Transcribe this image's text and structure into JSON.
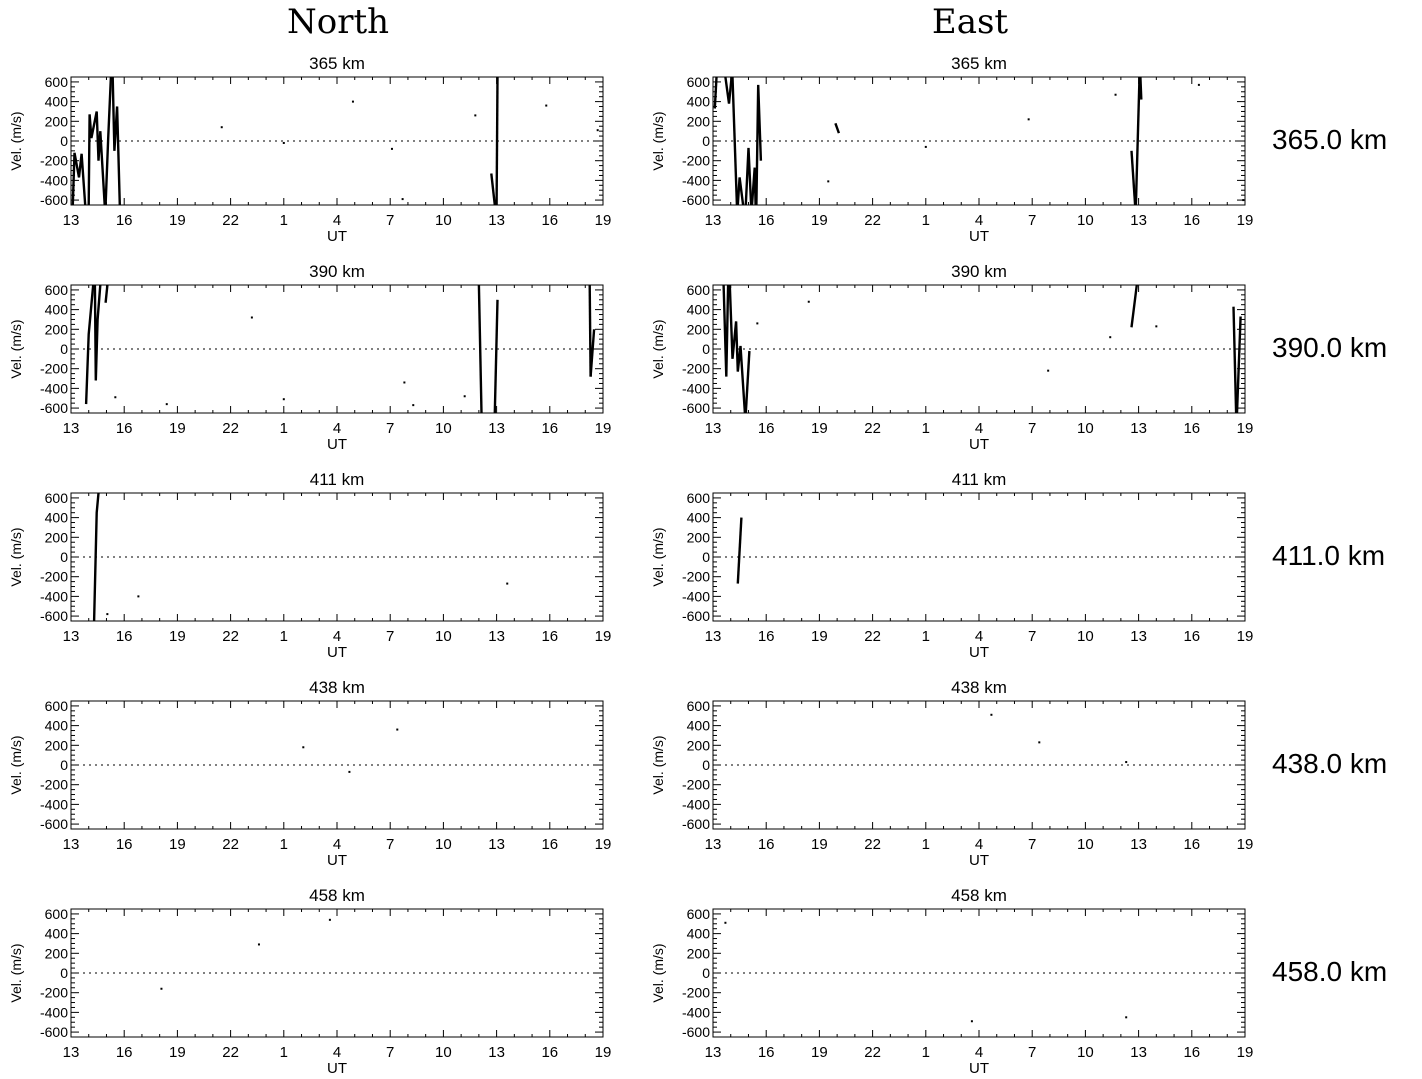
{
  "columns": [
    "North",
    "East"
  ],
  "row_labels": [
    "365.0 km",
    "390.0 km",
    "411.0 km",
    "438.0 km",
    "458.0 km"
  ],
  "chart_data": [
    {
      "type": "line",
      "column": "North",
      "title": "365 km",
      "xlabel": "UT",
      "ylabel": "Vel. (m/s)",
      "ylim": [
        -650,
        650
      ],
      "yticks": [
        -600,
        -400,
        -200,
        0,
        200,
        400,
        600
      ],
      "x_tick_labels": [
        "13",
        "16",
        "19",
        "22",
        "1",
        "4",
        "7",
        "10",
        "13",
        "16",
        "19"
      ],
      "x_range_hours": [
        0,
        30
      ],
      "zero_line": "dotted",
      "segments": [
        [
          [
            0.1,
            -650
          ],
          [
            0.2,
            -120
          ],
          [
            0.45,
            -370
          ],
          [
            0.6,
            -130
          ],
          [
            0.8,
            -650
          ]
        ],
        [
          [
            1.0,
            -650
          ],
          [
            1.05,
            270
          ],
          [
            1.15,
            30
          ],
          [
            1.45,
            300
          ],
          [
            1.55,
            -200
          ],
          [
            1.65,
            100
          ],
          [
            1.9,
            -650
          ]
        ],
        [
          [
            1.95,
            -650
          ],
          [
            2.1,
            30
          ],
          [
            2.25,
            650
          ]
        ],
        [
          [
            2.35,
            650
          ],
          [
            2.45,
            -100
          ],
          [
            2.6,
            350
          ],
          [
            2.75,
            -650
          ]
        ],
        [
          [
            23.7,
            -330
          ],
          [
            23.9,
            -650
          ]
        ],
        [
          [
            24.0,
            -650
          ],
          [
            24.05,
            650
          ]
        ]
      ],
      "points": [
        [
          8.5,
          140
        ],
        [
          12.0,
          -20
        ],
        [
          15.9,
          400
        ],
        [
          18.1,
          -80
        ],
        [
          18.7,
          -590
        ],
        [
          22.8,
          260
        ],
        [
          26.8,
          360
        ],
        [
          29.7,
          110
        ]
      ]
    },
    {
      "type": "line",
      "column": "East",
      "title": "365 km",
      "xlabel": "UT",
      "ylabel": "Vel. (m/s)",
      "ylim": [
        -650,
        650
      ],
      "yticks": [
        -600,
        -400,
        -200,
        0,
        200,
        400,
        600
      ],
      "x_tick_labels": [
        "13",
        "16",
        "19",
        "22",
        "1",
        "4",
        "7",
        "10",
        "13",
        "16",
        "19"
      ],
      "x_range_hours": [
        0,
        30
      ],
      "zero_line": "dotted",
      "segments": [
        [
          [
            0.1,
            330
          ],
          [
            0.2,
            650
          ]
        ],
        [
          [
            0.7,
            650
          ],
          [
            0.9,
            380
          ],
          [
            1.05,
            650
          ]
        ],
        [
          [
            1.1,
            650
          ],
          [
            1.35,
            -650
          ]
        ],
        [
          [
            1.4,
            -650
          ],
          [
            1.5,
            -370
          ],
          [
            1.7,
            -650
          ]
        ],
        [
          [
            1.85,
            -650
          ],
          [
            2.0,
            -70
          ],
          [
            2.15,
            -650
          ]
        ],
        [
          [
            2.2,
            -650
          ],
          [
            2.35,
            -270
          ],
          [
            2.4,
            -650
          ]
        ],
        [
          [
            2.45,
            -650
          ],
          [
            2.55,
            570
          ],
          [
            2.7,
            -200
          ]
        ],
        [
          [
            6.9,
            180
          ],
          [
            7.1,
            80
          ]
        ],
        [
          [
            23.6,
            -100
          ],
          [
            23.8,
            -650
          ]
        ],
        [
          [
            23.85,
            -650
          ],
          [
            24.05,
            650
          ]
        ],
        [
          [
            24.1,
            650
          ],
          [
            24.15,
            420
          ]
        ]
      ],
      "points": [
        [
          6.5,
          -410
        ],
        [
          12.0,
          -60
        ],
        [
          17.8,
          220
        ],
        [
          22.7,
          470
        ],
        [
          27.4,
          570
        ],
        [
          29.9,
          -600
        ]
      ]
    },
    {
      "type": "line",
      "column": "North",
      "title": "390 km",
      "xlabel": "UT",
      "ylabel": "Vel. (m/s)",
      "ylim": [
        -650,
        650
      ],
      "yticks": [
        -600,
        -400,
        -200,
        0,
        200,
        400,
        600
      ],
      "x_tick_labels": [
        "13",
        "16",
        "19",
        "22",
        "1",
        "4",
        "7",
        "10",
        "13",
        "16",
        "19"
      ],
      "x_range_hours": [
        0,
        30
      ],
      "zero_line": "dotted",
      "segments": [
        [
          [
            0.85,
            -560
          ],
          [
            1.0,
            150
          ],
          [
            1.25,
            650
          ]
        ],
        [
          [
            1.35,
            650
          ],
          [
            1.4,
            -320
          ],
          [
            1.5,
            300
          ],
          [
            1.65,
            650
          ]
        ],
        [
          [
            1.95,
            470
          ],
          [
            2.05,
            650
          ]
        ],
        [
          [
            23.0,
            650
          ],
          [
            23.15,
            -650
          ]
        ],
        [
          [
            23.9,
            -650
          ],
          [
            24.05,
            500
          ]
        ],
        [
          [
            29.3,
            -280
          ],
          [
            29.5,
            200
          ]
        ],
        [
          [
            29.25,
            650
          ],
          [
            29.3,
            -280
          ]
        ]
      ],
      "points": [
        [
          2.5,
          -490
        ],
        [
          5.4,
          -560
        ],
        [
          10.2,
          320
        ],
        [
          12.0,
          -510
        ],
        [
          18.8,
          -340
        ],
        [
          19.3,
          -570
        ],
        [
          22.2,
          -480
        ]
      ]
    },
    {
      "type": "line",
      "column": "East",
      "title": "390 km",
      "xlabel": "UT",
      "ylabel": "Vel. (m/s)",
      "ylim": [
        -650,
        650
      ],
      "yticks": [
        -600,
        -400,
        -200,
        0,
        200,
        400,
        600
      ],
      "x_tick_labels": [
        "13",
        "16",
        "19",
        "22",
        "1",
        "4",
        "7",
        "10",
        "13",
        "16",
        "19"
      ],
      "x_range_hours": [
        0,
        30
      ],
      "zero_line": "dotted",
      "segments": [
        [
          [
            0.6,
            650
          ],
          [
            0.75,
            -280
          ],
          [
            0.85,
            650
          ]
        ],
        [
          [
            0.95,
            650
          ],
          [
            1.1,
            -100
          ],
          [
            1.3,
            280
          ],
          [
            1.4,
            -230
          ],
          [
            1.55,
            30
          ],
          [
            1.8,
            -650
          ]
        ],
        [
          [
            1.85,
            -650
          ],
          [
            2.05,
            -20
          ]
        ],
        [
          [
            23.6,
            220
          ],
          [
            23.9,
            650
          ]
        ],
        [
          [
            29.35,
            430
          ],
          [
            29.5,
            -650
          ]
        ],
        [
          [
            29.55,
            -650
          ],
          [
            29.75,
            330
          ]
        ]
      ],
      "points": [
        [
          2.5,
          260
        ],
        [
          5.4,
          480
        ],
        [
          18.9,
          -220
        ],
        [
          22.4,
          120
        ],
        [
          25.0,
          230
        ]
      ]
    },
    {
      "type": "line",
      "column": "North",
      "title": "411 km",
      "xlabel": "UT",
      "ylabel": "Vel. (m/s)",
      "ylim": [
        -650,
        650
      ],
      "yticks": [
        -600,
        -400,
        -200,
        0,
        200,
        400,
        600
      ],
      "x_tick_labels": [
        "13",
        "16",
        "19",
        "22",
        "1",
        "4",
        "7",
        "10",
        "13",
        "16",
        "19"
      ],
      "x_range_hours": [
        0,
        30
      ],
      "zero_line": "dotted",
      "segments": [
        [
          [
            1.3,
            -650
          ],
          [
            1.45,
            450
          ],
          [
            1.55,
            650
          ]
        ]
      ],
      "points": [
        [
          2.05,
          -580
        ],
        [
          3.8,
          -400
        ],
        [
          24.6,
          -270
        ]
      ]
    },
    {
      "type": "line",
      "column": "East",
      "title": "411 km",
      "xlabel": "UT",
      "ylabel": "Vel. (m/s)",
      "ylim": [
        -650,
        650
      ],
      "yticks": [
        -600,
        -400,
        -200,
        0,
        200,
        400,
        600
      ],
      "x_tick_labels": [
        "13",
        "16",
        "19",
        "22",
        "1",
        "4",
        "7",
        "10",
        "13",
        "16",
        "19"
      ],
      "x_range_hours": [
        0,
        30
      ],
      "zero_line": "dotted",
      "segments": [
        [
          [
            1.4,
            -270
          ],
          [
            1.6,
            400
          ]
        ]
      ],
      "points": []
    },
    {
      "type": "scatter",
      "column": "North",
      "title": "438 km",
      "xlabel": "UT",
      "ylabel": "Vel. (m/s)",
      "ylim": [
        -650,
        650
      ],
      "yticks": [
        -600,
        -400,
        -200,
        0,
        200,
        400,
        600
      ],
      "x_tick_labels": [
        "13",
        "16",
        "19",
        "22",
        "1",
        "4",
        "7",
        "10",
        "13",
        "16",
        "19"
      ],
      "x_range_hours": [
        0,
        30
      ],
      "zero_line": "dotted",
      "segments": [],
      "points": [
        [
          13.1,
          180
        ],
        [
          15.7,
          -70
        ],
        [
          18.4,
          360
        ]
      ]
    },
    {
      "type": "scatter",
      "column": "East",
      "title": "438 km",
      "xlabel": "UT",
      "ylabel": "Vel. (m/s)",
      "ylim": [
        -650,
        650
      ],
      "yticks": [
        -600,
        -400,
        -200,
        0,
        200,
        400,
        600
      ],
      "x_tick_labels": [
        "13",
        "16",
        "19",
        "22",
        "1",
        "4",
        "7",
        "10",
        "13",
        "16",
        "19"
      ],
      "x_range_hours": [
        0,
        30
      ],
      "zero_line": "dotted",
      "segments": [],
      "points": [
        [
          15.7,
          510
        ],
        [
          18.4,
          230
        ],
        [
          23.3,
          30
        ]
      ]
    },
    {
      "type": "scatter",
      "column": "North",
      "title": "458 km",
      "xlabel": "UT",
      "ylabel": "Vel. (m/s)",
      "ylim": [
        -650,
        650
      ],
      "yticks": [
        -600,
        -400,
        -200,
        0,
        200,
        400,
        600
      ],
      "x_tick_labels": [
        "13",
        "16",
        "19",
        "22",
        "1",
        "4",
        "7",
        "10",
        "13",
        "16",
        "19"
      ],
      "x_range_hours": [
        0,
        30
      ],
      "zero_line": "dotted",
      "segments": [],
      "points": [
        [
          5.1,
          -160
        ],
        [
          10.6,
          290
        ],
        [
          14.6,
          540
        ]
      ]
    },
    {
      "type": "scatter",
      "column": "East",
      "title": "458 km",
      "xlabel": "UT",
      "ylabel": "Vel. (m/s)",
      "ylim": [
        -650,
        650
      ],
      "yticks": [
        -600,
        -400,
        -200,
        0,
        200,
        400,
        600
      ],
      "x_tick_labels": [
        "13",
        "16",
        "19",
        "22",
        "1",
        "4",
        "7",
        "10",
        "13",
        "16",
        "19"
      ],
      "x_range_hours": [
        0,
        30
      ],
      "zero_line": "dotted",
      "segments": [],
      "points": [
        [
          0.7,
          510
        ],
        [
          14.6,
          -490
        ],
        [
          23.3,
          -450
        ]
      ]
    }
  ]
}
